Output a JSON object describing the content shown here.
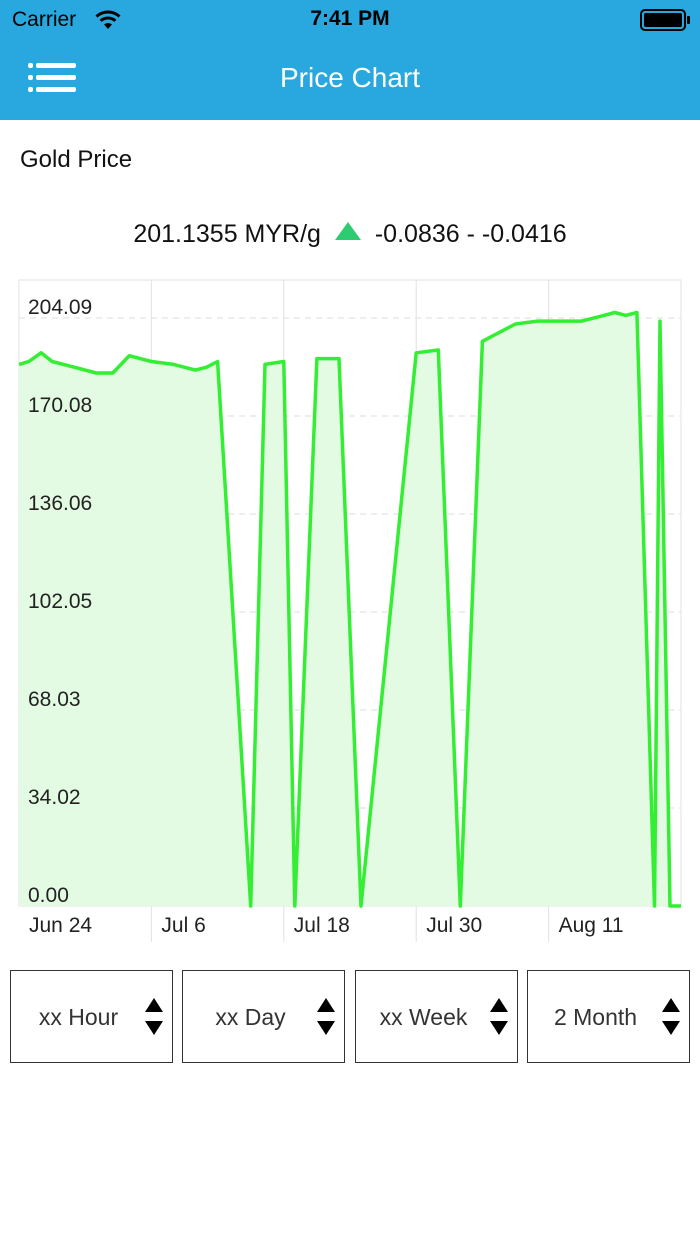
{
  "status_bar": {
    "carrier": "Carrier",
    "time": "7:41 PM",
    "icons": [
      "wifi-icon",
      "battery-icon"
    ]
  },
  "nav": {
    "title": "Price Chart",
    "menu_icon": "hamburger-menu-icon"
  },
  "section": {
    "title": "Gold Price"
  },
  "price": {
    "value": "201.1355 MYR/g",
    "change_abs": "-0.0836",
    "separator": " - ",
    "change_pct": "-0.0416",
    "trend_color": "#2ecc71"
  },
  "chart_data": {
    "type": "area",
    "line_color": "#33ee33",
    "fill_color": "#e3fbe3",
    "grid": true,
    "ylim": [
      0,
      204.09
    ],
    "y_ticks": [
      "0.00",
      "34.02",
      "68.03",
      "102.05",
      "136.06",
      "170.08",
      "204.09"
    ],
    "y_tick_values": [
      0,
      34.02,
      68.03,
      102.05,
      136.06,
      170.08,
      204.09
    ],
    "x_tick_labels": [
      "Jun 24",
      "Jul 6",
      "Jul 18",
      "Jul 30",
      "Aug 11"
    ],
    "x_tick_days": [
      0,
      12,
      24,
      36,
      48
    ],
    "xlim_days": [
      0,
      60
    ],
    "series": [
      {
        "x_days": [
          0,
          0.9,
          2,
          3,
          5,
          7,
          8.5,
          10,
          12,
          14,
          16,
          17,
          18,
          21,
          22.3,
          24,
          25,
          27,
          29,
          31,
          36,
          38,
          40,
          42,
          43,
          45,
          47,
          49,
          50,
          51,
          52,
          53,
          54,
          55,
          56,
          57.6,
          58.1,
          59,
          60
        ],
        "y": [
          188,
          189,
          192,
          189,
          187,
          185,
          185,
          191,
          189,
          188,
          186,
          187,
          189,
          0,
          188,
          189,
          0,
          190,
          190,
          0,
          192,
          193,
          0,
          196,
          198,
          202,
          203,
          203,
          203,
          203,
          204,
          205,
          206,
          205,
          206,
          0,
          203,
          0,
          0
        ]
      }
    ]
  },
  "pickers": [
    {
      "label": "xx Hour"
    },
    {
      "label": "xx Day"
    },
    {
      "label": "xx Week"
    },
    {
      "label": "2 Month"
    }
  ]
}
